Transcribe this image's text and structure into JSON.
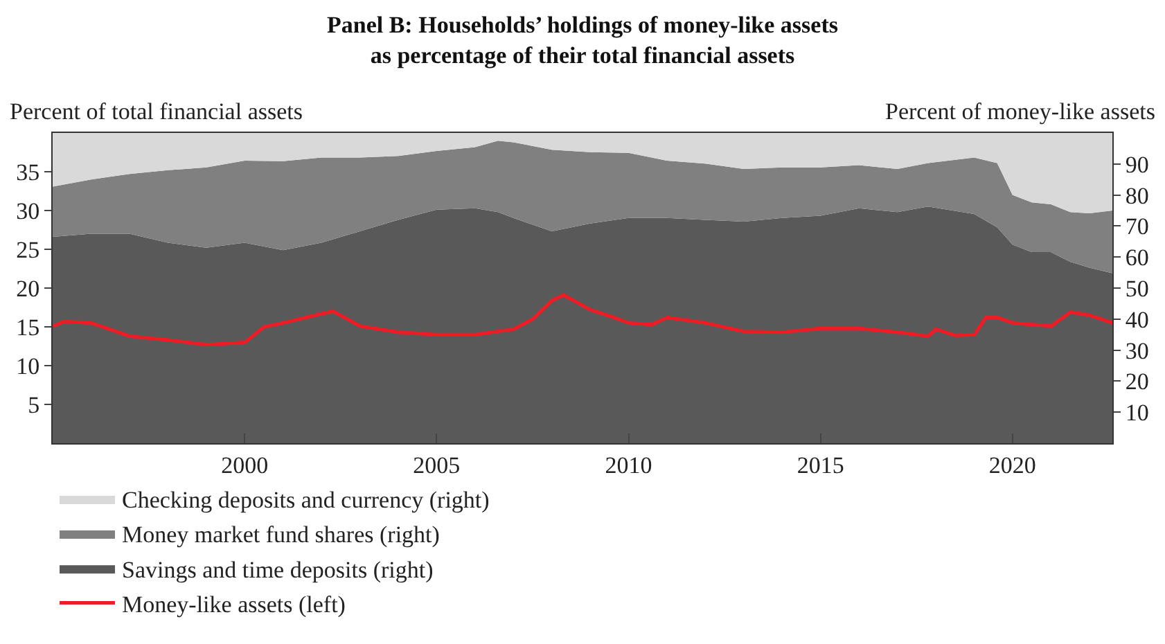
{
  "chart_data": {
    "type": "area",
    "stacked": true,
    "title": "Panel B: Households’ holdings of money-like assets\nas percentage of their total financial assets",
    "ylabel": "Percent of total financial assets",
    "y2label": "Percent of money-like assets",
    "legend": "bottom",
    "x": [
      1995,
      1996,
      1997,
      1998,
      1999,
      2000,
      2001,
      2002,
      2003,
      2004,
      2005,
      2006,
      2006.6,
      2007,
      2008,
      2009,
      2010,
      2011,
      2012,
      2013,
      2014,
      2015,
      2016,
      2017,
      2017.8,
      2019,
      2019.6,
      2020,
      2020.5,
      2021,
      2021.5,
      2022,
      2022.6
    ],
    "xlim": [
      1995,
      2022.6
    ],
    "xticks": [
      2000,
      2005,
      2010,
      2015,
      2020
    ],
    "ylim": [
      0,
      40
    ],
    "yticks": [
      5,
      10,
      15,
      20,
      25,
      30,
      35
    ],
    "y2lim": [
      0,
      100
    ],
    "y2ticks": [
      10,
      20,
      30,
      40,
      50,
      60,
      70,
      80,
      90
    ],
    "series": [
      {
        "name": "Savings and time deposits (right)",
        "color": "#595959",
        "axis": "y2",
        "values": [
          66.5,
          67.5,
          67.5,
          64.6,
          63,
          64.6,
          62.2,
          64.6,
          68.3,
          72,
          75.3,
          75.7,
          74.5,
          72.6,
          68.3,
          70.8,
          72.6,
          72.6,
          72,
          71.4,
          72.6,
          73.3,
          75.7,
          74.5,
          76.3,
          73.9,
          69.6,
          64,
          61.6,
          61.6,
          58.5,
          56.6,
          54.8
        ]
      },
      {
        "name": "Money market fund shares (right)",
        "color": "#808080",
        "axis": "y2",
        "values": [
          16.2,
          17.5,
          19.3,
          23.4,
          25.9,
          26.5,
          28.7,
          27.5,
          23.8,
          20.6,
          18.9,
          19.7,
          23.0,
          24.4,
          26.3,
          23.0,
          21.0,
          18.5,
          18.1,
          17.0,
          16.3,
          15.6,
          13.9,
          13.9,
          14.0,
          18.2,
          20.7,
          16.0,
          16.0,
          15.4,
          16.0,
          17.5,
          20.2
        ]
      },
      {
        "name": "Checking deposits and currency (right)",
        "color": "#d9d9d9",
        "axis": "y2",
        "values": [
          17.3,
          15,
          13.2,
          12,
          11.1,
          8.9,
          9.1,
          7.9,
          7.9,
          7.4,
          5.8,
          4.6,
          2.5,
          3,
          5.4,
          6.2,
          6.4,
          8.9,
          9.9,
          11.6,
          11.1,
          11.1,
          10.4,
          11.6,
          9.7,
          7.9,
          9.7,
          20,
          22.4,
          23,
          25.5,
          25.9,
          25
        ]
      },
      {
        "name": "Money-like assets (left)",
        "color": "#ee1c25",
        "type": "line",
        "axis": "y",
        "x": [
          1995,
          1995.3,
          1996,
          1997,
          1998,
          1999,
          2000,
          2000.5,
          2001,
          2002,
          2002.3,
          2003,
          2004,
          2005,
          2006,
          2007,
          2007.5,
          2008,
          2008.3,
          2009,
          2009.5,
          2010,
          2010.6,
          2011,
          2012,
          2013,
          2014,
          2015,
          2016,
          2017,
          2017.8,
          2018,
          2018.5,
          2019,
          2019.3,
          2019.6,
          2020,
          2020.5,
          2021,
          2021.5,
          2022,
          2022.6
        ],
        "values": [
          15.1,
          15.7,
          15.5,
          13.8,
          13.3,
          12.7,
          13.0,
          15.0,
          15.5,
          16.7,
          17.0,
          15.1,
          14.3,
          14.0,
          14.0,
          14.7,
          16.0,
          18.4,
          19.1,
          17.2,
          16.4,
          15.5,
          15.3,
          16.2,
          15.5,
          14.4,
          14.3,
          14.8,
          14.8,
          14.3,
          13.8,
          14.7,
          13.9,
          14.0,
          16.2,
          16.2,
          15.5,
          15.3,
          15.1,
          16.9,
          16.5,
          15.5
        ]
      }
    ]
  }
}
